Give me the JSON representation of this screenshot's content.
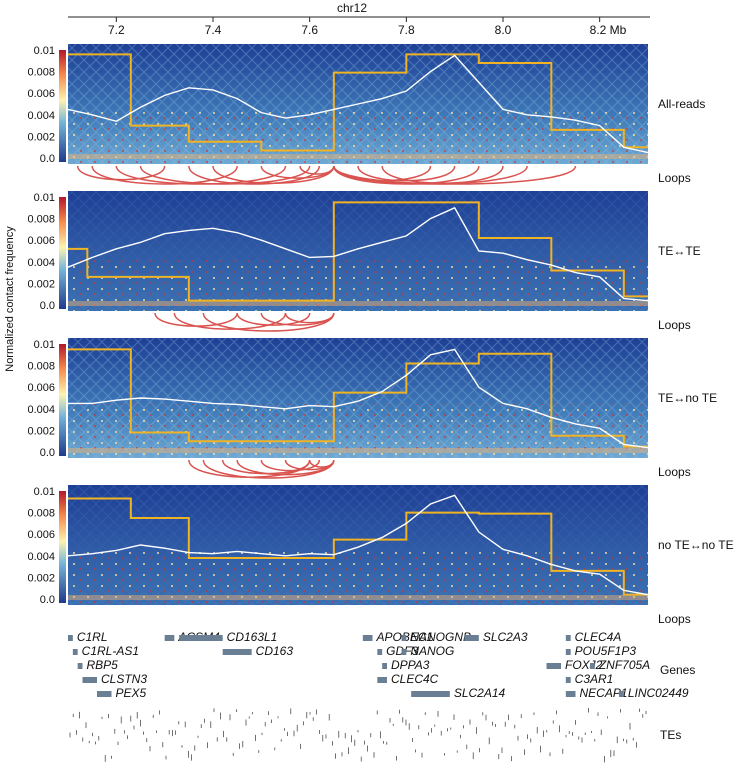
{
  "chart_data": {
    "type": "heatmap",
    "axis": {
      "chrom_label": "chr12",
      "unit_label": "Mb",
      "xlim": [
        7.1,
        8.3
      ],
      "ticks": [
        {
          "value": 7.2,
          "label": "7.2"
        },
        {
          "value": 7.4,
          "label": "7.4"
        },
        {
          "value": 7.6,
          "label": "7.6"
        },
        {
          "value": 7.8,
          "label": "7.8"
        },
        {
          "value": 8.0,
          "label": "8.0"
        },
        {
          "value": 8.2,
          "label": "8.2 Mb"
        }
      ]
    },
    "ylabel": "Normalized contact frequency",
    "ylim": [
      0,
      0.01
    ],
    "yticks": [
      "0.01",
      "0.008",
      "0.006",
      "0.004",
      "0.002",
      "0.0"
    ],
    "colors": {
      "heat_low": "#2c3e8f",
      "heat_mid": "#ffe89a",
      "heat_high": "#b2182b",
      "yellow_line": "#f0b323",
      "white_line": "#ffffff",
      "loop_arc": "#d9534f",
      "gene_box": "#6a7f94"
    },
    "loops_label": "Loops",
    "panels": [
      {
        "name": "All-reads",
        "yellow_steps": [
          [
            7.1,
            0.0096
          ],
          [
            7.23,
            0.003
          ],
          [
            7.35,
            0.0015
          ],
          [
            7.5,
            0.0007
          ],
          [
            7.65,
            0.0079
          ],
          [
            7.8,
            0.0096
          ],
          [
            7.95,
            0.0088
          ],
          [
            8.1,
            0.0026
          ],
          [
            8.25,
            0.001
          ]
        ],
        "white_line": [
          [
            7.1,
            0.0045
          ],
          [
            7.15,
            0.004
          ],
          [
            7.2,
            0.0034
          ],
          [
            7.25,
            0.0047
          ],
          [
            7.3,
            0.0058
          ],
          [
            7.35,
            0.0065
          ],
          [
            7.4,
            0.0063
          ],
          [
            7.45,
            0.0055
          ],
          [
            7.5,
            0.0042
          ],
          [
            7.55,
            0.0037
          ],
          [
            7.6,
            0.004
          ],
          [
            7.65,
            0.0045
          ],
          [
            7.7,
            0.005
          ],
          [
            7.75,
            0.0055
          ],
          [
            7.8,
            0.0062
          ],
          [
            7.85,
            0.008
          ],
          [
            7.9,
            0.0095
          ],
          [
            7.95,
            0.007
          ],
          [
            8.0,
            0.0045
          ],
          [
            8.05,
            0.004
          ],
          [
            8.1,
            0.0038
          ],
          [
            8.15,
            0.0035
          ],
          [
            8.2,
            0.003
          ],
          [
            8.25,
            0.001
          ],
          [
            8.3,
            0.0005
          ]
        ],
        "loops": [
          [
            7.12,
            7.3
          ],
          [
            7.15,
            7.45
          ],
          [
            7.2,
            7.55
          ],
          [
            7.25,
            7.6
          ],
          [
            7.35,
            7.62
          ],
          [
            7.4,
            7.65
          ],
          [
            7.5,
            7.65
          ],
          [
            7.58,
            7.65
          ],
          [
            7.65,
            7.85
          ],
          [
            7.65,
            7.95
          ],
          [
            7.65,
            8.05
          ],
          [
            7.65,
            8.15
          ],
          [
            7.7,
            7.9
          ],
          [
            7.75,
            8.0
          ]
        ]
      },
      {
        "name": "TE↔TE",
        "yellow_steps": [
          [
            7.1,
            0.0052
          ],
          [
            7.14,
            0.0026
          ],
          [
            7.35,
            0.0004
          ],
          [
            7.65,
            0.0095
          ],
          [
            7.95,
            0.0062
          ],
          [
            8.1,
            0.0032
          ],
          [
            8.25,
            0.0008
          ]
        ],
        "white_line": [
          [
            7.1,
            0.0035
          ],
          [
            7.15,
            0.0044
          ],
          [
            7.2,
            0.0052
          ],
          [
            7.25,
            0.0058
          ],
          [
            7.3,
            0.0066
          ],
          [
            7.35,
            0.0069
          ],
          [
            7.4,
            0.0071
          ],
          [
            7.45,
            0.0067
          ],
          [
            7.5,
            0.006
          ],
          [
            7.55,
            0.0052
          ],
          [
            7.6,
            0.0044
          ],
          [
            7.65,
            0.0045
          ],
          [
            7.7,
            0.0052
          ],
          [
            7.75,
            0.0058
          ],
          [
            7.8,
            0.0064
          ],
          [
            7.85,
            0.008
          ],
          [
            7.9,
            0.009
          ],
          [
            7.95,
            0.005
          ],
          [
            8.0,
            0.0048
          ],
          [
            8.05,
            0.0042
          ],
          [
            8.1,
            0.0037
          ],
          [
            8.15,
            0.003
          ],
          [
            8.2,
            0.0026
          ],
          [
            8.25,
            0.0006
          ],
          [
            8.3,
            0.0004
          ]
        ],
        "loops": [
          [
            7.28,
            7.45
          ],
          [
            7.32,
            7.55
          ],
          [
            7.38,
            7.65
          ],
          [
            7.45,
            7.6
          ],
          [
            7.5,
            7.65
          ],
          [
            7.55,
            7.65
          ]
        ]
      },
      {
        "name": "TE↔no TE",
        "yellow_steps": [
          [
            7.1,
            0.0095
          ],
          [
            7.23,
            0.0018
          ],
          [
            7.35,
            0.001
          ],
          [
            7.65,
            0.0055
          ],
          [
            7.8,
            0.0082
          ],
          [
            7.95,
            0.0091
          ],
          [
            8.1,
            0.0015
          ],
          [
            8.25,
            0.0005
          ]
        ],
        "white_line": [
          [
            7.1,
            0.0045
          ],
          [
            7.15,
            0.0045
          ],
          [
            7.2,
            0.0048
          ],
          [
            7.25,
            0.005
          ],
          [
            7.3,
            0.0049
          ],
          [
            7.35,
            0.0047
          ],
          [
            7.4,
            0.0045
          ],
          [
            7.45,
            0.0044
          ],
          [
            7.5,
            0.0042
          ],
          [
            7.55,
            0.004
          ],
          [
            7.6,
            0.0043
          ],
          [
            7.65,
            0.0042
          ],
          [
            7.7,
            0.0047
          ],
          [
            7.75,
            0.0056
          ],
          [
            7.8,
            0.0071
          ],
          [
            7.85,
            0.009
          ],
          [
            7.9,
            0.0095
          ],
          [
            7.95,
            0.006
          ],
          [
            8.0,
            0.0045
          ],
          [
            8.05,
            0.004
          ],
          [
            8.1,
            0.0032
          ],
          [
            8.15,
            0.0026
          ],
          [
            8.2,
            0.0022
          ],
          [
            8.25,
            0.0007
          ],
          [
            8.3,
            0.0004
          ]
        ],
        "loops": [
          [
            7.35,
            7.6
          ],
          [
            7.38,
            7.65
          ],
          [
            7.42,
            7.6
          ],
          [
            7.45,
            7.65
          ],
          [
            7.5,
            7.62
          ],
          [
            7.55,
            7.65
          ],
          [
            7.6,
            7.65
          ]
        ]
      },
      {
        "name": "no TE↔no TE",
        "yellow_steps": [
          [
            7.1,
            0.0093
          ],
          [
            7.23,
            0.0075
          ],
          [
            7.35,
            0.0038
          ],
          [
            7.65,
            0.0055
          ],
          [
            7.8,
            0.008
          ],
          [
            7.95,
            0.0079
          ],
          [
            8.1,
            0.0026
          ],
          [
            8.25,
            0.0004
          ]
        ],
        "white_line": [
          [
            7.1,
            0.004
          ],
          [
            7.15,
            0.0042
          ],
          [
            7.2,
            0.0045
          ],
          [
            7.25,
            0.005
          ],
          [
            7.3,
            0.0047
          ],
          [
            7.35,
            0.0043
          ],
          [
            7.4,
            0.0042
          ],
          [
            7.45,
            0.0044
          ],
          [
            7.5,
            0.0042
          ],
          [
            7.55,
            0.004
          ],
          [
            7.6,
            0.0042
          ],
          [
            7.65,
            0.0041
          ],
          [
            7.7,
            0.0048
          ],
          [
            7.75,
            0.0057
          ],
          [
            7.8,
            0.007
          ],
          [
            7.85,
            0.0088
          ],
          [
            7.9,
            0.0096
          ],
          [
            7.95,
            0.0062
          ],
          [
            8.0,
            0.0046
          ],
          [
            8.05,
            0.004
          ],
          [
            8.1,
            0.0032
          ],
          [
            8.15,
            0.0026
          ],
          [
            8.2,
            0.0023
          ],
          [
            8.25,
            0.0008
          ],
          [
            8.3,
            0.0004
          ]
        ],
        "loops": []
      }
    ],
    "genes_track": {
      "label": "Genes",
      "genes": [
        {
          "name": "C1RL",
          "start": 7.1,
          "end": 7.11,
          "row": 0
        },
        {
          "name": "C1RL-AS1",
          "start": 7.11,
          "end": 7.12,
          "row": 1
        },
        {
          "name": "RBP5",
          "start": 7.12,
          "end": 7.13,
          "row": 2
        },
        {
          "name": "CLSTN3",
          "start": 7.13,
          "end": 7.16,
          "row": 3
        },
        {
          "name": "PEX5",
          "start": 7.16,
          "end": 7.19,
          "row": 4
        },
        {
          "name": "ACSM4",
          "start": 7.3,
          "end": 7.32,
          "row": 0
        },
        {
          "name": "CD163L1",
          "start": 7.33,
          "end": 7.42,
          "row": 0
        },
        {
          "name": "CD163",
          "start": 7.42,
          "end": 7.48,
          "row": 1
        },
        {
          "name": "APOBEC1",
          "start": 7.71,
          "end": 7.73,
          "row": 0
        },
        {
          "name": "GDF3",
          "start": 7.74,
          "end": 7.75,
          "row": 1
        },
        {
          "name": "DPPA3",
          "start": 7.75,
          "end": 7.76,
          "row": 2
        },
        {
          "name": "NANOGNB",
          "start": 7.79,
          "end": 7.8,
          "row": 0
        },
        {
          "name": "NANOG",
          "start": 7.79,
          "end": 7.8,
          "row": 1
        },
        {
          "name": "CLEC4C",
          "start": 7.74,
          "end": 7.76,
          "row": 3
        },
        {
          "name": "SLC2A14",
          "start": 7.81,
          "end": 7.89,
          "row": 4
        },
        {
          "name": "SLC2A3",
          "start": 7.92,
          "end": 7.95,
          "row": 0
        },
        {
          "name": "CLEC4A",
          "start": 8.13,
          "end": 8.14,
          "row": 0
        },
        {
          "name": "POU5F1P3",
          "start": 8.13,
          "end": 8.14,
          "row": 1
        },
        {
          "name": "FOXJ2",
          "start": 8.09,
          "end": 8.12,
          "row": 2
        },
        {
          "name": "C3AR1",
          "start": 8.13,
          "end": 8.14,
          "row": 3
        },
        {
          "name": "ZNF705A",
          "start": 8.18,
          "end": 8.19,
          "row": 2
        },
        {
          "name": "NECAP1",
          "start": 8.13,
          "end": 8.15,
          "row": 4
        },
        {
          "name": "LINC02449",
          "start": 8.24,
          "end": 8.25,
          "row": 4
        }
      ]
    },
    "tes_track": {
      "label": "TEs"
    }
  }
}
